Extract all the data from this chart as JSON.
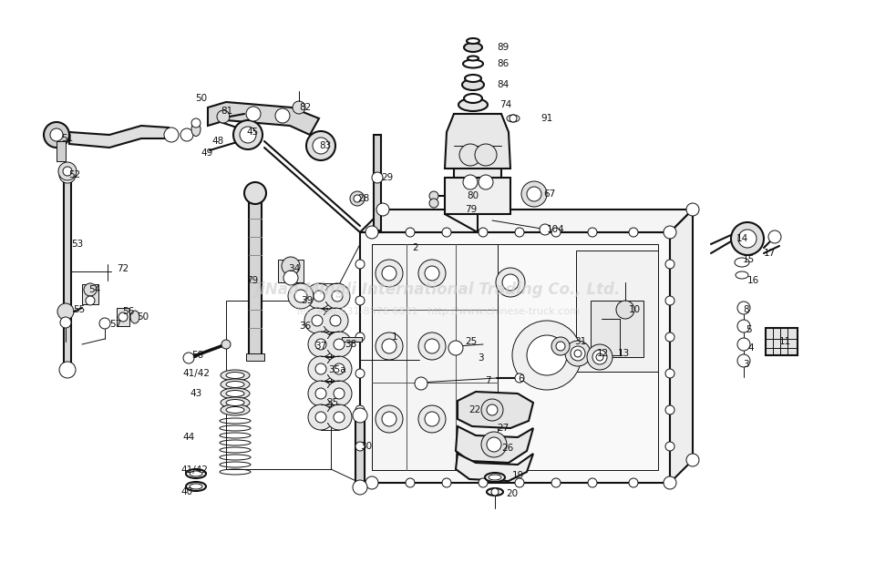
{
  "bg_color": "#ffffff",
  "line_color": "#111111",
  "watermark1": "JiNan Mingli International Trading Co., Ltd.",
  "watermark2": "Tel: +86-531-8576 6881   http://www.chinese-truck.com",
  "figsize": [
    9.6,
    6.4
  ],
  "dpi": 100,
  "labels": [
    [
      "89",
      545,
      52
    ],
    [
      "86",
      545,
      70
    ],
    [
      "84",
      545,
      93
    ],
    [
      "74",
      548,
      115
    ],
    [
      "91",
      593,
      130
    ],
    [
      "29",
      418,
      195
    ],
    [
      "28",
      392,
      218
    ],
    [
      "104",
      600,
      252
    ],
    [
      "2",
      452,
      272
    ],
    [
      "80",
      512,
      215
    ],
    [
      "79",
      510,
      230
    ],
    [
      "67",
      596,
      213
    ],
    [
      "81",
      242,
      122
    ],
    [
      "82",
      328,
      118
    ],
    [
      "83",
      350,
      160
    ],
    [
      "50",
      214,
      108
    ],
    [
      "45",
      270,
      145
    ],
    [
      "48",
      232,
      155
    ],
    [
      "49",
      220,
      168
    ],
    [
      "51",
      67,
      152
    ],
    [
      "52",
      75,
      192
    ],
    [
      "53",
      78,
      268
    ],
    [
      "79",
      270,
      308
    ],
    [
      "72",
      128,
      295
    ],
    [
      "54",
      97,
      318
    ],
    [
      "55",
      80,
      340
    ],
    [
      "56",
      134,
      342
    ],
    [
      "57",
      120,
      356
    ],
    [
      "50",
      150,
      348
    ],
    [
      "58",
      210,
      390
    ],
    [
      "41/42",
      200,
      410
    ],
    [
      "43",
      208,
      432
    ],
    [
      "44",
      200,
      480
    ],
    [
      "41/42",
      198,
      516
    ],
    [
      "40",
      198,
      540
    ],
    [
      "34",
      316,
      295
    ],
    [
      "39",
      330,
      330
    ],
    [
      "36",
      328,
      358
    ],
    [
      "37",
      345,
      380
    ],
    [
      "38",
      378,
      378
    ],
    [
      "35a",
      360,
      406
    ],
    [
      "35",
      358,
      442
    ],
    [
      "30",
      395,
      490
    ],
    [
      "1",
      430,
      370
    ],
    [
      "25",
      510,
      375
    ],
    [
      "3",
      524,
      393
    ],
    [
      "7",
      532,
      418
    ],
    [
      "6",
      568,
      416
    ],
    [
      "31",
      630,
      375
    ],
    [
      "12",
      655,
      388
    ],
    [
      "13",
      678,
      388
    ],
    [
      "22",
      514,
      450
    ],
    [
      "27",
      545,
      470
    ],
    [
      "26",
      550,
      492
    ],
    [
      "19",
      562,
      522
    ],
    [
      "20",
      555,
      542
    ],
    [
      "14",
      808,
      262
    ],
    [
      "15",
      815,
      285
    ],
    [
      "16",
      820,
      308
    ],
    [
      "17",
      838,
      278
    ],
    [
      "8",
      815,
      340
    ],
    [
      "5",
      818,
      362
    ],
    [
      "4",
      820,
      382
    ],
    [
      "3",
      815,
      400
    ],
    [
      "10",
      690,
      340
    ],
    [
      "11",
      855,
      375
    ]
  ]
}
